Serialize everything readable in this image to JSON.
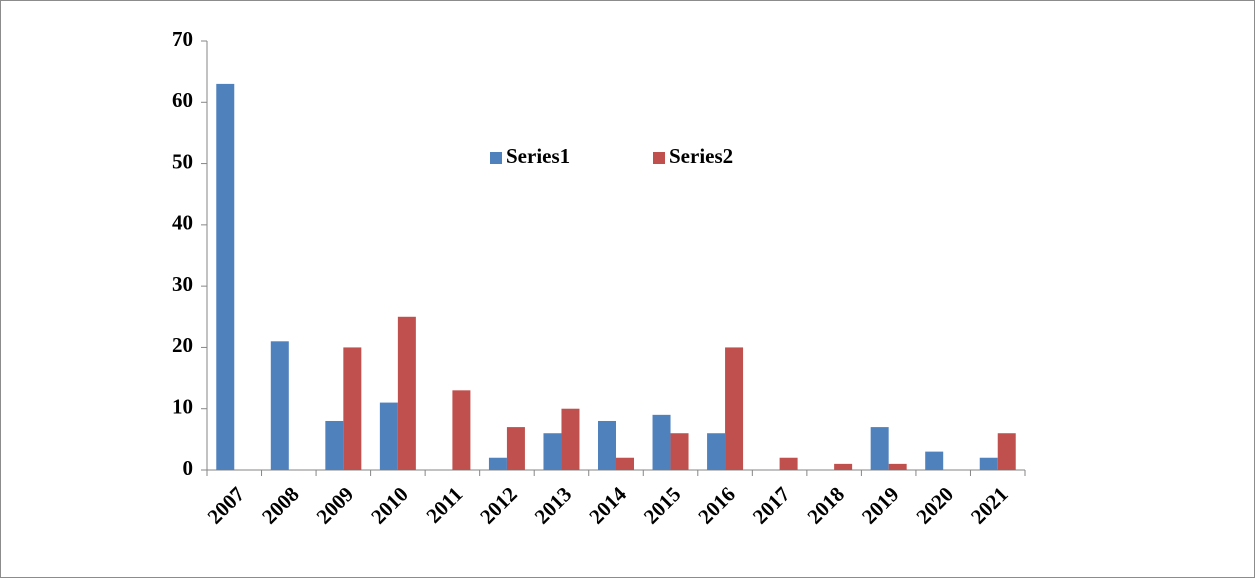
{
  "chart_data": {
    "type": "bar",
    "categories": [
      "2007",
      "2008",
      "2009",
      "2010",
      "2011",
      "2012",
      "2013",
      "2014",
      "2015",
      "2016",
      "2017",
      "2018",
      "2019",
      "2020",
      "2021"
    ],
    "series": [
      {
        "name": "Series1",
        "color": "#4f81bd",
        "values": [
          63,
          21,
          8,
          11,
          0,
          2,
          6,
          8,
          9,
          6,
          0,
          0,
          7,
          3,
          2
        ]
      },
      {
        "name": "Series2",
        "color": "#c0504d",
        "values": [
          0,
          0,
          20,
          25,
          13,
          7,
          10,
          2,
          6,
          20,
          2,
          1,
          1,
          0,
          6
        ]
      }
    ],
    "ylim": [
      0,
      70
    ],
    "yticks": [
      0,
      10,
      20,
      30,
      40,
      50,
      60,
      70
    ],
    "grid": false,
    "legend": "top"
  }
}
